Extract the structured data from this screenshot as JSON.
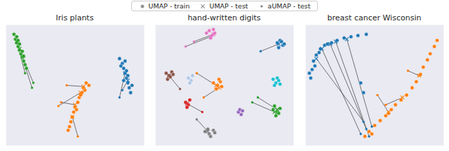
{
  "chart_data": [
    {
      "type": "scatter",
      "title": "Iris plants",
      "legend": "top",
      "grid": true,
      "tick_labels": false,
      "xlim": [
        0,
        100
      ],
      "ylim": [
        0,
        100
      ],
      "xticks": [
        0,
        25,
        50,
        75,
        100
      ],
      "yticks": [
        0,
        25,
        50,
        75,
        100
      ],
      "series": [
        {
          "name": "UMAP - train",
          "marker": "circle",
          "color": "#8c8c8c",
          "x": [
            6,
            7,
            8,
            9,
            10,
            11,
            12,
            13,
            14,
            8,
            10,
            12,
            15,
            9,
            13,
            58,
            56,
            55,
            53,
            52,
            50,
            49,
            48,
            47,
            46,
            45,
            60,
            54,
            51,
            57,
            82,
            84,
            85,
            86,
            87,
            88,
            89,
            90,
            83,
            87,
            88,
            85,
            91,
            86
          ],
          "y": [
            92,
            88,
            85,
            82,
            79,
            76,
            73,
            70,
            67,
            90,
            84,
            78,
            64,
            87,
            74,
            52,
            48,
            44,
            40,
            36,
            32,
            28,
            24,
            20,
            16,
            13,
            50,
            42,
            30,
            46,
            72,
            68,
            64,
            60,
            56,
            52,
            48,
            44,
            66,
            62,
            58,
            54,
            50,
            70
          ],
          "colors": [
            "#2ca02c",
            "#2ca02c",
            "#2ca02c",
            "#2ca02c",
            "#2ca02c",
            "#2ca02c",
            "#2ca02c",
            "#2ca02c",
            "#2ca02c",
            "#2ca02c",
            "#2ca02c",
            "#2ca02c",
            "#2ca02c",
            "#2ca02c",
            "#2ca02c",
            "#ff7f0e",
            "#ff7f0e",
            "#ff7f0e",
            "#ff7f0e",
            "#ff7f0e",
            "#ff7f0e",
            "#ff7f0e",
            "#ff7f0e",
            "#ff7f0e",
            "#ff7f0e",
            "#ff7f0e",
            "#ff7f0e",
            "#ff7f0e",
            "#ff7f0e",
            "#ff7f0e",
            "#1f77b4",
            "#1f77b4",
            "#1f77b4",
            "#1f77b4",
            "#1f77b4",
            "#1f77b4",
            "#1f77b4",
            "#1f77b4",
            "#1f77b4",
            "#1f77b4",
            "#1f77b4",
            "#1f77b4",
            "#1f77b4",
            "#1f77b4"
          ]
        },
        {
          "name": "UMAP - test",
          "marker": "x",
          "color": "#8c8c8c",
          "x": [
            10,
            12,
            8,
            54,
            50,
            48,
            56,
            86,
            88
          ],
          "y": [
            80,
            74,
            86,
            44,
            34,
            24,
            49,
            60,
            54
          ],
          "colors": [
            "#2ca02c",
            "#2ca02c",
            "#2ca02c",
            "#ff7f0e",
            "#ff7f0e",
            "#ff7f0e",
            "#ff7f0e",
            "#1f77b4",
            "#1f77b4"
          ]
        },
        {
          "name": "aUMAP - test",
          "marker": "dot",
          "color": "#8c8c8c",
          "x": [
            19,
            20,
            14,
            38,
            40,
            52,
            44,
            82,
            84
          ],
          "y": [
            48,
            52,
            60,
            33,
            36,
            8,
            50,
            40,
            46
          ],
          "colors": [
            "#2ca02c",
            "#2ca02c",
            "#2ca02c",
            "#ff7f0e",
            "#ff7f0e",
            "#ff7f0e",
            "#ff7f0e",
            "#1f77b4",
            "#1f77b4"
          ]
        }
      ]
    },
    {
      "type": "scatter",
      "title": "hand-written digits",
      "grid": true,
      "tick_labels": false,
      "xlim": [
        0,
        100
      ],
      "ylim": [
        0,
        100
      ],
      "xticks": [
        0,
        25,
        50,
        75,
        100
      ],
      "yticks": [
        0,
        25,
        50,
        75,
        100
      ],
      "series": [
        {
          "name": "UMAP - train",
          "marker": "circle",
          "color": "#8c8c8c",
          "x": [
            37,
            39,
            41,
            43,
            40,
            42,
            88,
            90,
            92,
            89,
            91,
            93,
            42,
            45,
            47,
            44,
            48,
            46,
            85,
            88,
            90,
            87,
            89,
            86,
            22,
            24,
            25,
            23,
            60,
            62,
            61,
            63,
            8,
            10,
            12,
            9,
            11,
            13,
            36,
            39,
            42,
            40,
            38,
            43,
            24,
            26,
            27,
            25,
            85,
            87,
            89,
            86,
            88,
            90
          ],
          "y": [
            93,
            95,
            91,
            93,
            89,
            96,
            85,
            87,
            83,
            81,
            86,
            84,
            52,
            50,
            53,
            47,
            49,
            55,
            30,
            28,
            31,
            25,
            27,
            33,
            36,
            34,
            38,
            32,
            28,
            26,
            30,
            29,
            60,
            58,
            61,
            55,
            57,
            59,
            12,
            10,
            13,
            8,
            14,
            11,
            56,
            54,
            58,
            52,
            55,
            52,
            54,
            50,
            56,
            51
          ],
          "colors": [
            "#e377c2",
            "#e377c2",
            "#e377c2",
            "#e377c2",
            "#e377c2",
            "#e377c2",
            "#1f77b4",
            "#1f77b4",
            "#1f77b4",
            "#1f77b4",
            "#1f77b4",
            "#1f77b4",
            "#ff7f0e",
            "#ff7f0e",
            "#ff7f0e",
            "#ff7f0e",
            "#ff7f0e",
            "#ff7f0e",
            "#2ca02c",
            "#2ca02c",
            "#2ca02c",
            "#2ca02c",
            "#2ca02c",
            "#2ca02c",
            "#d62728",
            "#d62728",
            "#d62728",
            "#d62728",
            "#9467bd",
            "#9467bd",
            "#9467bd",
            "#9467bd",
            "#8c564b",
            "#8c564b",
            "#8c564b",
            "#8c564b",
            "#8c564b",
            "#8c564b",
            "#7f7f7f",
            "#7f7f7f",
            "#7f7f7f",
            "#7f7f7f",
            "#7f7f7f",
            "#7f7f7f",
            "#aec7e8",
            "#aec7e8",
            "#aec7e8",
            "#aec7e8",
            "#17becf",
            "#17becf",
            "#17becf",
            "#17becf",
            "#17becf",
            "#17becf"
          ]
        },
        {
          "name": "UMAP - test",
          "marker": "x",
          "color": "#8c8c8c",
          "x": [
            40,
            42,
            44,
            46,
            86,
            88,
            10,
            38,
            89,
            23
          ],
          "y": [
            90,
            92,
            50,
            48,
            28,
            30,
            58,
            12,
            84,
            35
          ],
          "colors": [
            "#e377c2",
            "#e377c2",
            "#ff7f0e",
            "#ff7f0e",
            "#2ca02c",
            "#2ca02c",
            "#8c564b",
            "#7f7f7f",
            "#1f77b4",
            "#d62728"
          ]
        },
        {
          "name": "aUMAP - test",
          "marker": "dot",
          "color": "#8c8c8c",
          "x": [
            22,
            28,
            30,
            35,
            70,
            74,
            18,
            30,
            76,
            34
          ],
          "y": [
            82,
            86,
            60,
            40,
            36,
            40,
            47,
            22,
            78,
            28
          ],
          "colors": [
            "#e377c2",
            "#e377c2",
            "#ff7f0e",
            "#ff7f0e",
            "#2ca02c",
            "#2ca02c",
            "#8c564b",
            "#7f7f7f",
            "#1f77b4",
            "#d62728"
          ]
        }
      ]
    },
    {
      "type": "scatter",
      "title": "breast cancer Wisconsin",
      "grid": true,
      "tick_labels": false,
      "xlim": [
        0,
        100
      ],
      "ylim": [
        0,
        100
      ],
      "xticks": [
        0,
        25,
        50,
        75,
        100
      ],
      "yticks": [
        0,
        25,
        50,
        75,
        100
      ],
      "series": [
        {
          "name": "UMAP - train",
          "marker": "circle",
          "color": "#8c8c8c",
          "x": [
            4,
            5,
            6,
            8,
            11,
            14,
            19,
            23,
            28,
            33,
            38,
            44,
            7,
            16,
            3,
            10,
            40,
            42,
            43,
            46,
            50,
            54,
            58,
            62,
            65,
            69,
            73,
            77,
            80,
            83,
            85,
            88,
            90,
            93,
            95,
            48,
            60
          ],
          "y": [
            56,
            63,
            70,
            75,
            80,
            83,
            85,
            87,
            89,
            90,
            91,
            92,
            66,
            84,
            60,
            77,
            52,
            44,
            8,
            12,
            17,
            21,
            25,
            30,
            34,
            38,
            42,
            48,
            53,
            59,
            65,
            71,
            76,
            82,
            87,
            10,
            27
          ],
          "colors": [
            "#1f77b4",
            "#1f77b4",
            "#1f77b4",
            "#1f77b4",
            "#1f77b4",
            "#1f77b4",
            "#1f77b4",
            "#1f77b4",
            "#1f77b4",
            "#1f77b4",
            "#1f77b4",
            "#1f77b4",
            "#1f77b4",
            "#1f77b4",
            "#1f77b4",
            "#1f77b4",
            "#1f77b4",
            "#1f77b4",
            "#ff7f0e",
            "#ff7f0e",
            "#ff7f0e",
            "#ff7f0e",
            "#ff7f0e",
            "#ff7f0e",
            "#ff7f0e",
            "#ff7f0e",
            "#ff7f0e",
            "#ff7f0e",
            "#ff7f0e",
            "#ff7f0e",
            "#ff7f0e",
            "#ff7f0e",
            "#ff7f0e",
            "#ff7f0e",
            "#ff7f0e",
            "#ff7f0e",
            "#ff7f0e"
          ]
        },
        {
          "name": "UMAP - test",
          "marker": "x",
          "color": "#8c8c8c",
          "x": [
            12,
            18,
            22,
            8,
            30,
            60,
            70,
            82
          ],
          "y": [
            80,
            84,
            86,
            72,
            88,
            28,
            40,
            58
          ],
          "colors": [
            "#1f77b4",
            "#1f77b4",
            "#1f77b4",
            "#1f77b4",
            "#1f77b4",
            "#ff7f0e",
            "#ff7f0e",
            "#ff7f0e"
          ]
        },
        {
          "name": "aUMAP - test",
          "marker": "dot",
          "color": "#8c8c8c",
          "x": [
            40,
            44,
            46,
            42,
            48,
            52,
            58,
            74
          ],
          "y": [
            10,
            14,
            8,
            20,
            16,
            42,
            34,
            62
          ],
          "colors": [
            "#1f77b4",
            "#1f77b4",
            "#1f77b4",
            "#1f77b4",
            "#1f77b4",
            "#ff7f0e",
            "#ff7f0e",
            "#ff7f0e"
          ]
        }
      ]
    }
  ]
}
